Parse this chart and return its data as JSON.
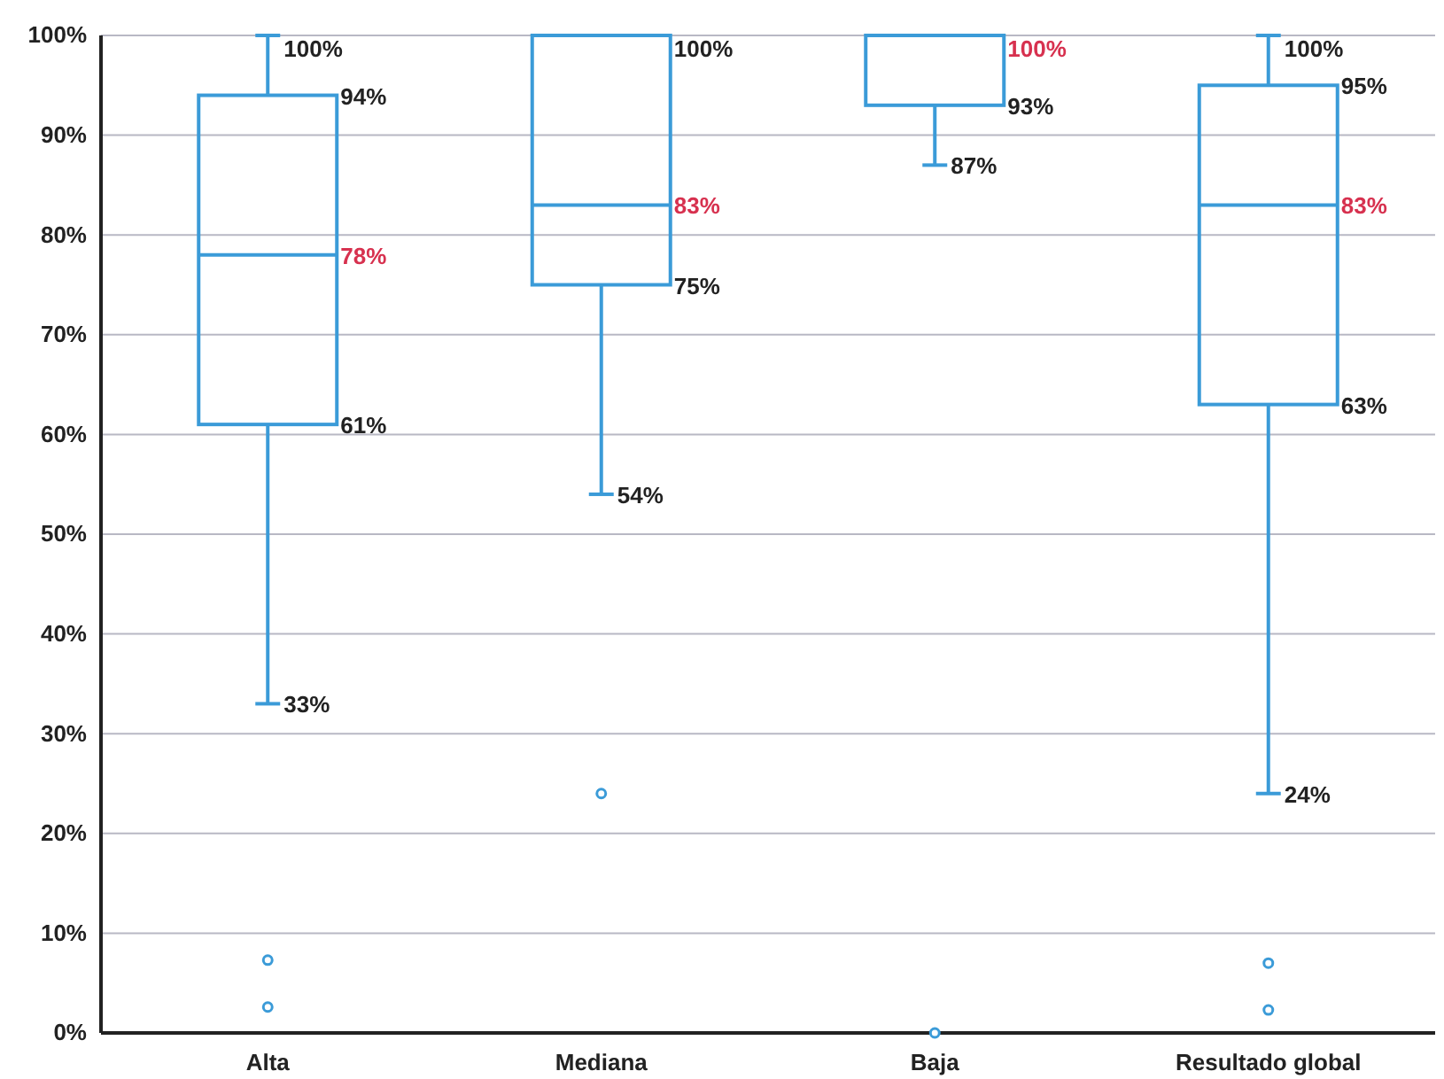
{
  "chart_data": {
    "type": "box",
    "categories": [
      "Alta",
      "Mediana",
      "Baja",
      "Resultado global"
    ],
    "boxes": [
      {
        "low": 33,
        "q1": 61,
        "median": 78,
        "q3": 94,
        "high": 100,
        "outliers": [
          7.3,
          2.6
        ]
      },
      {
        "low": 54,
        "q1": 75,
        "median": 83,
        "q3": 100,
        "high": 100,
        "outliers": [
          24
        ]
      },
      {
        "low": 87,
        "q1": 93,
        "median": 100,
        "q3": 100,
        "high": 100,
        "outliers": [
          0
        ]
      },
      {
        "low": 24,
        "q1": 63,
        "median": 83,
        "q3": 95,
        "high": 100,
        "outliers": [
          7,
          2.3
        ]
      }
    ],
    "color": "#3b9bd8",
    "ylim": [
      0,
      100
    ],
    "yticks": [
      {
        "value": 0,
        "label": "0%"
      },
      {
        "value": 10,
        "label": "10%"
      },
      {
        "value": 20,
        "label": "20%"
      },
      {
        "value": 30,
        "label": "30%"
      },
      {
        "value": 40,
        "label": "40%"
      },
      {
        "value": 50,
        "label": "50%"
      },
      {
        "value": 60,
        "label": "60%"
      },
      {
        "value": 70,
        "label": "70%"
      },
      {
        "value": 80,
        "label": "80%"
      },
      {
        "value": 90,
        "label": "90%"
      },
      {
        "value": 100,
        "label": "100%"
      }
    ],
    "grid": "y",
    "annotations": [
      "100%",
      "94%",
      "78%",
      "61%",
      "33%",
      "100%",
      "83%",
      "75%",
      "54%",
      "100%",
      "93%",
      "87%",
      "100%",
      "95%",
      "83%",
      "63%",
      "24%"
    ]
  }
}
